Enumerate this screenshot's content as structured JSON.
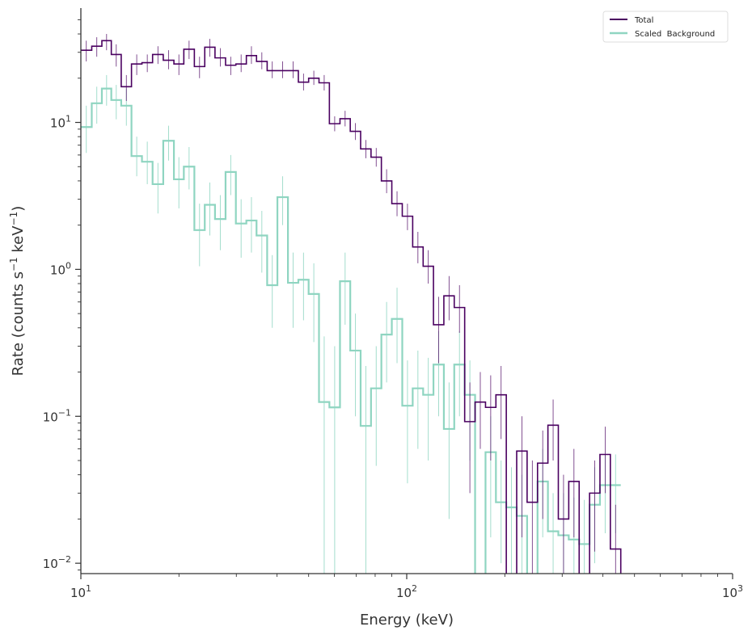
{
  "chart_data": {
    "type": "line",
    "step": true,
    "xlabel": "Energy (keV)",
    "ylabel": "Rate (counts s⁻¹ keV⁻¹)",
    "xscale": "log",
    "yscale": "log",
    "xlim": [
      10,
      1000
    ],
    "ylim": [
      0.0085,
      60
    ],
    "x_ticks": [
      {
        "value": 10,
        "base": "10",
        "exp": "1"
      },
      {
        "value": 100,
        "base": "10",
        "exp": "2"
      },
      {
        "value": 1000,
        "base": "10",
        "exp": "3"
      }
    ],
    "y_ticks": [
      {
        "value": 0.01,
        "base": "10",
        "exp": "−2"
      },
      {
        "value": 0.1,
        "base": "10",
        "exp": "−1"
      },
      {
        "value": 1,
        "base": "10",
        "exp": "0"
      },
      {
        "value": 10,
        "base": "10",
        "exp": "1"
      }
    ],
    "grid": false,
    "legend_position": "top-right",
    "series": [
      {
        "name": "Total",
        "color": "#4a0060",
        "points": [
          [
            10.0,
            10.8,
            31,
            26,
            36
          ],
          [
            10.8,
            11.6,
            33,
            28,
            38
          ],
          [
            11.6,
            12.4,
            36,
            31,
            40
          ],
          [
            12.4,
            13.3,
            29,
            24,
            34
          ],
          [
            13.3,
            14.3,
            17.5,
            14,
            21
          ],
          [
            14.3,
            15.4,
            25,
            21,
            29
          ],
          [
            15.4,
            16.6,
            25.5,
            22,
            29
          ],
          [
            16.6,
            17.9,
            29,
            25,
            33
          ],
          [
            17.9,
            19.3,
            26.5,
            23,
            31
          ],
          [
            19.3,
            20.7,
            25,
            21,
            29
          ],
          [
            20.7,
            22.3,
            31.5,
            27,
            36
          ],
          [
            22.3,
            24.0,
            24,
            20,
            28
          ],
          [
            24.0,
            25.8,
            32.5,
            28,
            37
          ],
          [
            25.8,
            27.8,
            27.5,
            24,
            32
          ],
          [
            27.8,
            29.9,
            24.5,
            21,
            28
          ],
          [
            29.9,
            32.2,
            25,
            22,
            29
          ],
          [
            32.2,
            34.6,
            28.5,
            25,
            33
          ],
          [
            34.6,
            37.3,
            26,
            23,
            30
          ],
          [
            37.3,
            40.1,
            22.5,
            20,
            26
          ],
          [
            40.1,
            43.2,
            22.5,
            20,
            26
          ],
          [
            43.2,
            46.5,
            22.5,
            20,
            26
          ],
          [
            46.5,
            50.0,
            18.8,
            16.5,
            21.5
          ],
          [
            50.0,
            53.8,
            20,
            18,
            22.5
          ],
          [
            53.8,
            57.9,
            18.6,
            16.5,
            21
          ],
          [
            57.9,
            62.4,
            9.8,
            8.7,
            11
          ],
          [
            62.4,
            67.1,
            10.6,
            9.4,
            12
          ],
          [
            67.1,
            72.2,
            8.7,
            7.6,
            9.9
          ],
          [
            72.2,
            77.7,
            6.6,
            5.7,
            7.6
          ],
          [
            77.7,
            83.6,
            5.8,
            5.0,
            6.7
          ],
          [
            83.6,
            90.0,
            4.0,
            3.3,
            4.8
          ],
          [
            90.0,
            96.9,
            2.8,
            2.3,
            3.4
          ],
          [
            96.9,
            104.3,
            2.3,
            1.85,
            2.8
          ],
          [
            104.3,
            112.3,
            1.42,
            1.1,
            1.8
          ],
          [
            112.3,
            120.8,
            1.05,
            0.8,
            1.35
          ],
          [
            120.8,
            130.0,
            0.42,
            0.23,
            0.65
          ],
          [
            130.0,
            139.9,
            0.66,
            0.45,
            0.9
          ],
          [
            139.9,
            150.6,
            0.55,
            0.37,
            0.78
          ],
          [
            150.6,
            162.1,
            0.092,
            0.03,
            0.17
          ],
          [
            162.1,
            174.5,
            0.125,
            0.06,
            0.2
          ],
          [
            174.5,
            187.8,
            0.115,
            0.05,
            0.19
          ],
          [
            187.8,
            202.1,
            0.14,
            0.07,
            0.22
          ],
          [
            202.1,
            217.5,
            0.004,
            0.004,
            0.004
          ],
          [
            217.5,
            234.1,
            0.058,
            0.015,
            0.1
          ],
          [
            234.1,
            252.0,
            0.026,
            0.008,
            0.05
          ],
          [
            252.0,
            271.2,
            0.048,
            0.02,
            0.08
          ],
          [
            271.2,
            291.9,
            0.087,
            0.05,
            0.13
          ],
          [
            291.9,
            314.2,
            0.02,
            0.008,
            0.04
          ],
          [
            314.2,
            338.2,
            0.036,
            0.015,
            0.06
          ],
          [
            338.2,
            364.0,
            0.004,
            0.004,
            0.004
          ],
          [
            364.0,
            391.7,
            0.03,
            0.012,
            0.05
          ],
          [
            391.7,
            421.6,
            0.055,
            0.03,
            0.085
          ],
          [
            421.6,
            453.8,
            0.0125,
            0.004,
            0.025
          ],
          [
            453.8,
            488.4,
            0.004,
            0.004,
            0.004
          ],
          [
            488.4,
            525.7,
            0.004,
            0.004,
            0.004
          ],
          [
            525.7,
            565.8,
            0.004,
            0.004,
            0.004
          ],
          [
            565.8,
            609.0,
            0.004,
            0.004,
            0.004
          ],
          [
            609.0,
            655.4,
            0.004,
            0.004,
            0.004
          ],
          [
            655.4,
            705.4,
            0.004,
            0.004,
            0.004
          ],
          [
            705.4,
            759.3,
            0.004,
            0.004,
            0.004
          ],
          [
            759.3,
            817.2,
            0.004,
            0.004,
            0.004
          ],
          [
            817.2,
            879.5,
            0.004,
            0.004,
            0.004
          ],
          [
            879.5,
            946.6,
            0.004,
            0.004,
            0.004
          ],
          [
            946.6,
            1000,
            0.004,
            0.004,
            0.004
          ]
        ]
      },
      {
        "name": "Scaled  Background",
        "color": "#8fd5c1",
        "points": [
          [
            10.0,
            10.8,
            9.3,
            6.2,
            13
          ],
          [
            10.8,
            11.6,
            13.5,
            9.8,
            17.5
          ],
          [
            11.6,
            12.4,
            17,
            13,
            21
          ],
          [
            12.4,
            13.3,
            14.2,
            10.5,
            18
          ],
          [
            13.3,
            14.3,
            13,
            9.5,
            17
          ],
          [
            14.3,
            15.4,
            5.9,
            4.3,
            8
          ],
          [
            15.4,
            16.6,
            5.4,
            3.8,
            7.4
          ],
          [
            16.6,
            17.9,
            3.8,
            2.4,
            5.3
          ],
          [
            17.9,
            19.3,
            7.5,
            5.5,
            9.5
          ],
          [
            19.3,
            20.7,
            4.1,
            2.6,
            5.8
          ],
          [
            20.7,
            22.3,
            5.0,
            3.5,
            6.8
          ],
          [
            22.3,
            24.0,
            1.85,
            1.05,
            2.8
          ],
          [
            24.0,
            25.8,
            2.75,
            1.7,
            3.9
          ],
          [
            25.8,
            27.8,
            2.2,
            1.35,
            3.2
          ],
          [
            27.8,
            29.9,
            4.6,
            3.2,
            6.0
          ],
          [
            29.9,
            32.2,
            2.05,
            1.2,
            3.0
          ],
          [
            32.2,
            34.6,
            2.15,
            1.3,
            3.1
          ],
          [
            34.6,
            37.3,
            1.7,
            0.95,
            2.5
          ],
          [
            37.3,
            40.1,
            0.78,
            0.4,
            1.25
          ],
          [
            40.1,
            43.2,
            3.1,
            2.0,
            4.3
          ],
          [
            43.2,
            46.5,
            0.81,
            0.4,
            1.3
          ],
          [
            46.5,
            50.0,
            0.85,
            0.45,
            1.3
          ],
          [
            50.0,
            53.8,
            0.68,
            0.32,
            1.1
          ],
          [
            53.8,
            57.9,
            0.125,
            0.004,
            0.35
          ],
          [
            57.9,
            62.4,
            0.115,
            0.004,
            0.3
          ],
          [
            62.4,
            67.1,
            0.83,
            0.42,
            1.3
          ],
          [
            67.1,
            72.2,
            0.28,
            0.1,
            0.5
          ],
          [
            72.2,
            77.7,
            0.086,
            0.004,
            0.22
          ],
          [
            77.7,
            83.6,
            0.155,
            0.046,
            0.3
          ],
          [
            83.6,
            90.0,
            0.36,
            0.17,
            0.6
          ],
          [
            90.0,
            96.9,
            0.46,
            0.23,
            0.75
          ],
          [
            96.9,
            104.3,
            0.118,
            0.035,
            0.24
          ],
          [
            104.3,
            112.3,
            0.155,
            0.06,
            0.28
          ],
          [
            112.3,
            120.8,
            0.14,
            0.05,
            0.25
          ],
          [
            120.8,
            130.0,
            0.225,
            0.1,
            0.38
          ],
          [
            130.0,
            139.9,
            0.082,
            0.02,
            0.17
          ],
          [
            139.9,
            150.6,
            0.225,
            0.1,
            0.38
          ],
          [
            150.6,
            162.1,
            0.14,
            0.05,
            0.24
          ],
          [
            162.1,
            174.5,
            0.004,
            0.004,
            0.004
          ],
          [
            174.5,
            187.8,
            0.057,
            0.015,
            0.1
          ],
          [
            187.8,
            202.1,
            0.026,
            0.01,
            0.05
          ],
          [
            202.1,
            217.5,
            0.024,
            0.008,
            0.045
          ],
          [
            217.5,
            234.1,
            0.021,
            0.007,
            0.04
          ],
          [
            234.1,
            252.0,
            0.004,
            0.004,
            0.004
          ],
          [
            252.0,
            271.2,
            0.036,
            0.015,
            0.06
          ],
          [
            271.2,
            291.9,
            0.0165,
            0.005,
            0.03
          ],
          [
            291.9,
            314.2,
            0.0155,
            0.005,
            0.03
          ],
          [
            314.2,
            338.2,
            0.0145,
            0.005,
            0.028
          ],
          [
            338.2,
            364.0,
            0.0135,
            0.004,
            0.027
          ],
          [
            364.0,
            391.7,
            0.025,
            0.01,
            0.045
          ],
          [
            391.7,
            421.6,
            0.034,
            0.016,
            0.055
          ],
          [
            421.6,
            453.8,
            0.034,
            0.016,
            0.055
          ]
        ]
      }
    ]
  },
  "legend": {
    "items": [
      {
        "label": "Total",
        "color": "#4a0060"
      },
      {
        "label": "Scaled  Background",
        "color": "#8fd5c1"
      }
    ]
  },
  "axis": {
    "xlabel": "Energy (keV)",
    "ylabel_main": "Rate (counts s",
    "ylabel_sup1": "−1",
    "ylabel_mid": " keV",
    "ylabel_sup2": "−1",
    "ylabel_end": ")"
  }
}
